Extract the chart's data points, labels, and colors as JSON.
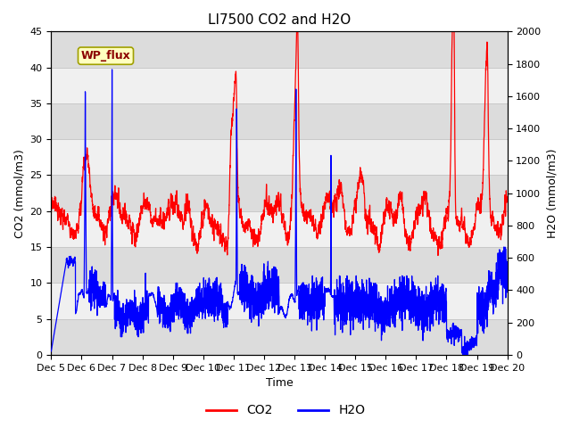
{
  "title": "LI7500 CO2 and H2O",
  "xlabel": "Time",
  "ylabel_left": "CO2 (mmol/m3)",
  "ylabel_right": "H2O (mmol/m3)",
  "ylim_left": [
    0,
    45
  ],
  "ylim_right": [
    0,
    2000
  ],
  "yticks_left": [
    0,
    5,
    10,
    15,
    20,
    25,
    30,
    35,
    40,
    45
  ],
  "yticks_right": [
    0,
    200,
    400,
    600,
    800,
    1000,
    1200,
    1400,
    1600,
    1800,
    2000
  ],
  "xtick_labels": [
    "Dec 5",
    "Dec 6",
    "Dec 7",
    "Dec 8",
    "Dec 9",
    "Dec 10",
    "Dec 11",
    "Dec 12",
    "Dec 13",
    "Dec 14",
    "Dec 15",
    "Dec 16",
    "Dec 17",
    "Dec 18",
    "Dec 19",
    "Dec 20"
  ],
  "co2_color": "#ff0000",
  "h2o_color": "#0000ff",
  "background_color": "#ffffff",
  "plot_bg_light": "#f0f0f0",
  "plot_bg_dark": "#dcdcdc",
  "grid_line_color": "#c8c8c8",
  "annotation_text": "WP_flux",
  "annotation_bg": "#ffffc0",
  "annotation_border": "#a0a000",
  "legend_co2": "CO2",
  "legend_h2o": "H2O",
  "title_fontsize": 11,
  "axis_fontsize": 9,
  "tick_fontsize": 8,
  "legend_fontsize": 10
}
